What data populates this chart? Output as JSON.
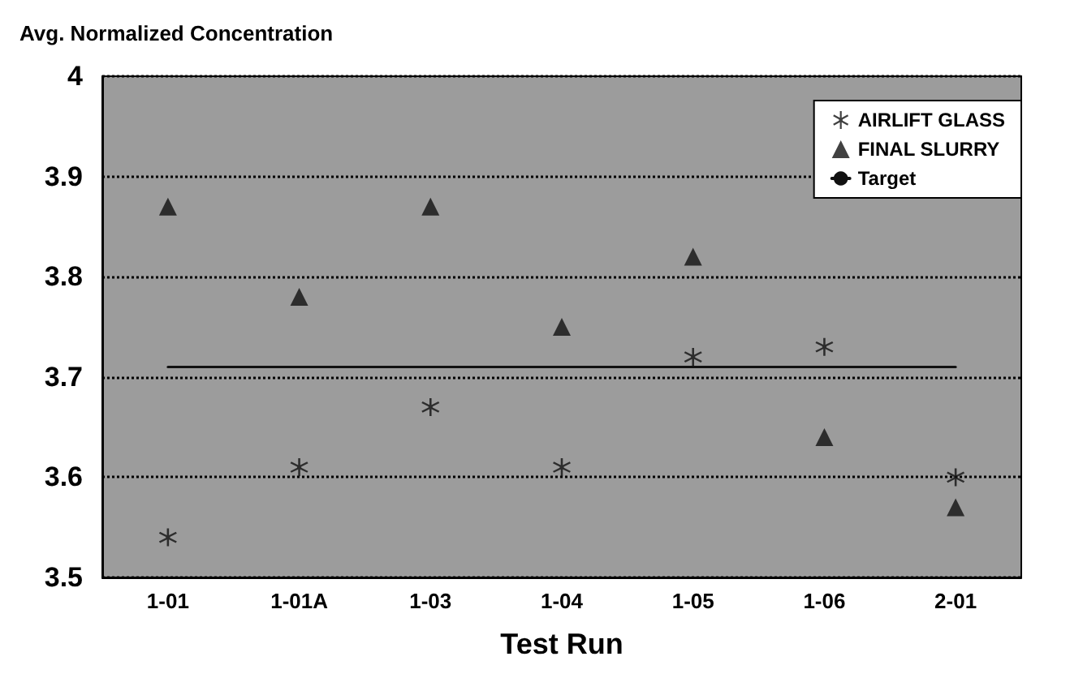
{
  "chart_data": {
    "type": "scatter",
    "ylabel": "Avg. Normalized Concentration",
    "xlabel": "Test Run",
    "categories": [
      "1-01",
      "1-01A",
      "1-03",
      "1-04",
      "1-05",
      "1-06",
      "2-01"
    ],
    "series": [
      {
        "name": "AIRLIFT GLASS",
        "color": "#111111",
        "marker": "star",
        "values": [
          3.54,
          3.61,
          3.67,
          3.61,
          3.72,
          3.73,
          3.6
        ]
      },
      {
        "name": "FINAL SLURRY",
        "color": "#111111",
        "marker": "triangle",
        "values": [
          3.87,
          3.78,
          3.87,
          3.75,
          3.82,
          3.64,
          3.57
        ]
      },
      {
        "name": "Target",
        "type": "line",
        "color": "#111111",
        "marker": "none",
        "line_style": "solid",
        "values": [
          3.71,
          3.71,
          3.71,
          3.71,
          3.71,
          3.71,
          3.71
        ]
      }
    ],
    "ylim": [
      3.5,
      4
    ],
    "yticks": [
      3.5,
      3.6,
      3.7,
      3.8,
      3.9,
      4
    ],
    "grid": "y",
    "legend": "top right"
  }
}
